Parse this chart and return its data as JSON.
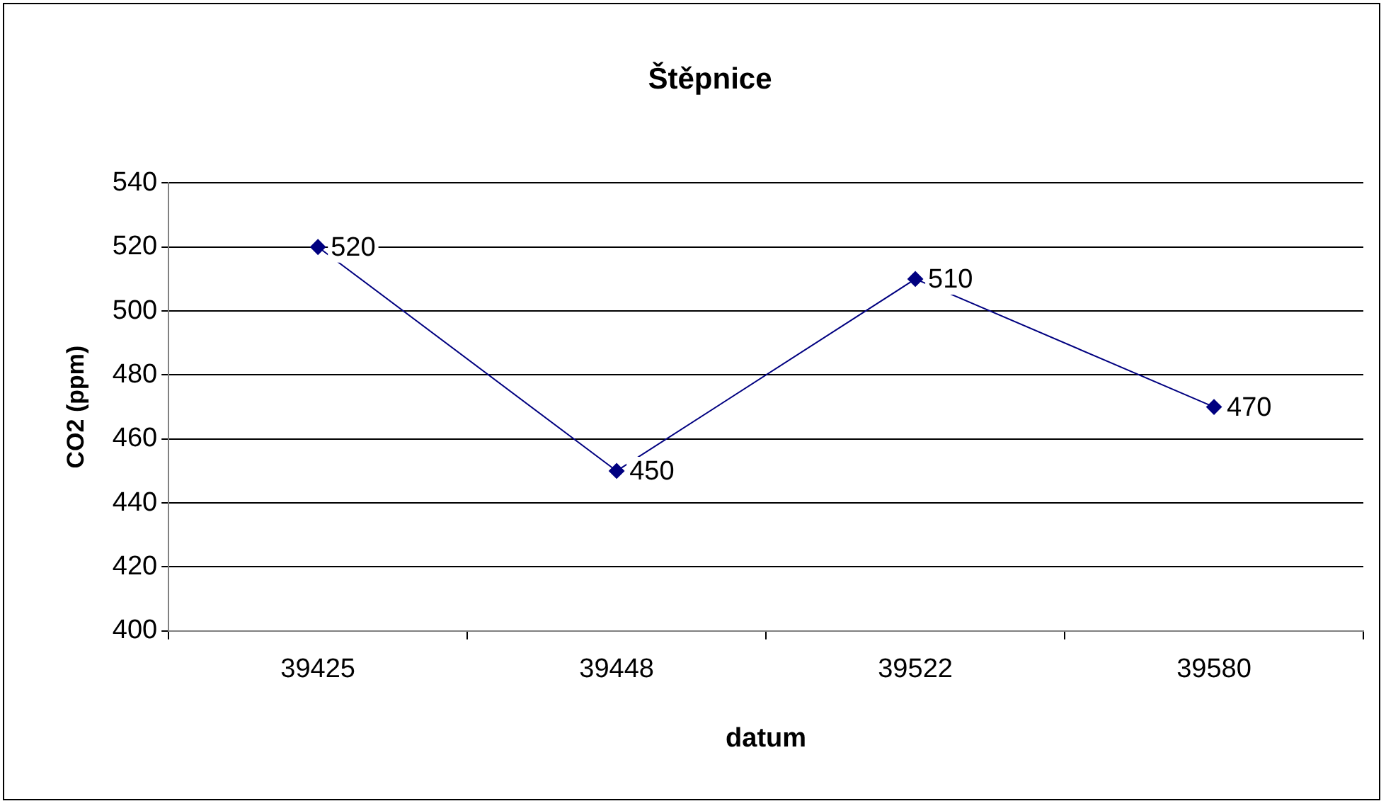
{
  "chart_data": {
    "type": "line",
    "title": "Štěpnice",
    "xlabel": "datum",
    "ylabel": "CO2 (ppm)",
    "categories": [
      "39425",
      "39448",
      "39522",
      "39580"
    ],
    "values": [
      520,
      450,
      510,
      470
    ],
    "color": "#000080",
    "marker": "diamond",
    "data_labels": true,
    "ylim": [
      400,
      540
    ],
    "yticks": [
      400,
      420,
      440,
      460,
      480,
      500,
      520,
      540
    ],
    "grid": "y",
    "legend": false
  }
}
